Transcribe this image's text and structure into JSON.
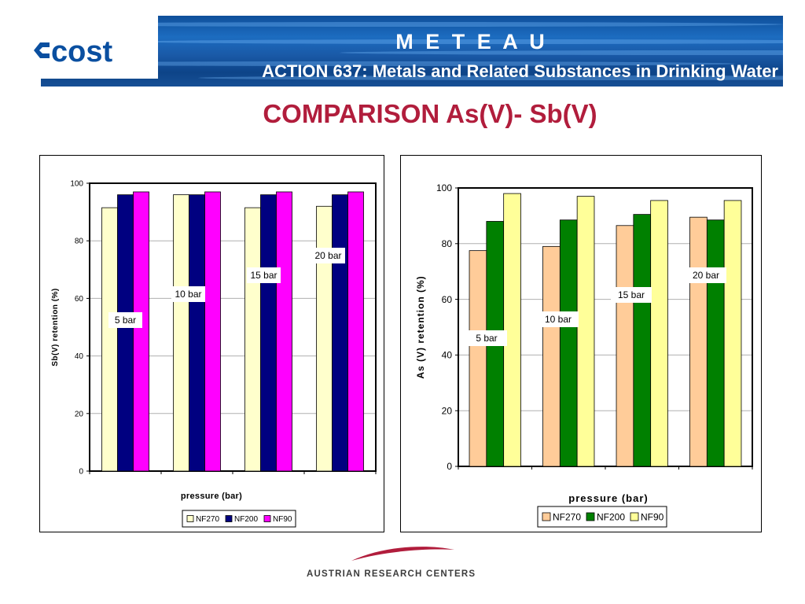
{
  "header": {
    "logo_text": "cost",
    "title": "M E T E A U",
    "subtitle": "ACTION 637: Metals and Related Substances in Drinking Water"
  },
  "slide": {
    "title": "COMPARISON As(V)- Sb(V)"
  },
  "footer": {
    "org": "AUSTRIAN RESEARCH CENTERS"
  },
  "colors": {
    "title": "#b11d3c",
    "banner": "#1a5aa8"
  },
  "chart_data": [
    {
      "type": "bar",
      "title": "",
      "xlabel": "pressure (bar)",
      "ylabel": "Sb(V) retention (%)",
      "ylim": [
        0,
        100
      ],
      "yticks": [
        0,
        20,
        40,
        60,
        80,
        100
      ],
      "categories": [
        "",
        "",
        "",
        ""
      ],
      "series": [
        {
          "name": "NF270",
          "color": "#ffffcc",
          "values": [
            91.5,
            96,
            91.5,
            92
          ]
        },
        {
          "name": "NF200",
          "color": "#000080",
          "values": [
            96,
            96,
            96,
            96
          ]
        },
        {
          "name": "NF90",
          "color": "#ff00ff",
          "values": [
            97,
            97,
            97,
            97
          ]
        }
      ],
      "annotations": [
        "5 bar",
        "10 bar",
        "15 bar",
        "20 bar"
      ],
      "legend": "bottom",
      "grid": true
    },
    {
      "type": "bar",
      "title": "",
      "xlabel": "pressure (bar)",
      "ylabel": "As (V) retention (%)",
      "ylim": [
        0,
        100
      ],
      "yticks": [
        0,
        20,
        40,
        60,
        80,
        100
      ],
      "categories": [
        "",
        "",
        "",
        ""
      ],
      "series": [
        {
          "name": "NF270",
          "color": "#ffcc99",
          "values": [
            77.5,
            79,
            86.5,
            89.5
          ]
        },
        {
          "name": "NF200",
          "color": "#008000",
          "values": [
            88,
            88.5,
            90.5,
            88.5
          ]
        },
        {
          "name": "NF90",
          "color": "#ffff99",
          "values": [
            98,
            97,
            95.5,
            95.5
          ]
        }
      ],
      "annotations": [
        "5 bar",
        "10 bar",
        "15 bar",
        "20 bar"
      ],
      "legend": "bottom",
      "grid": true
    }
  ]
}
